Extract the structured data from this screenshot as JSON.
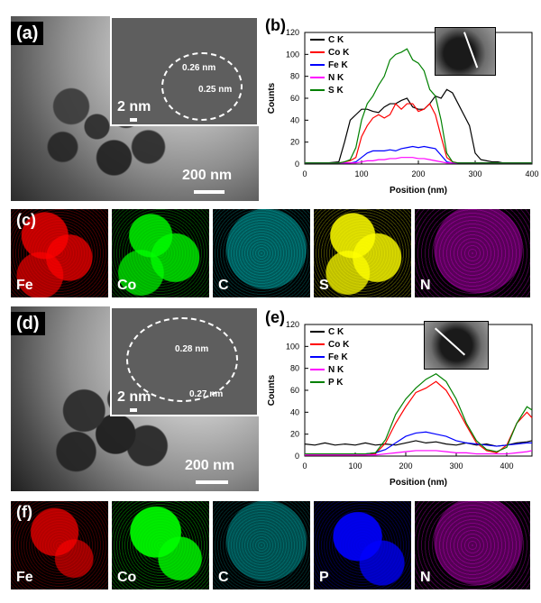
{
  "panels": {
    "a": {
      "label": "(a)",
      "scale": "200 nm",
      "inset_scale": "2 nm",
      "d1": "0.26 nm",
      "d2": "0.25 nm"
    },
    "b": {
      "label": "(b)"
    },
    "c": {
      "label": "(c)",
      "maps": [
        "Fe",
        "Co",
        "C",
        "S",
        "N"
      ]
    },
    "d": {
      "label": "(d)",
      "scale": "200 nm",
      "inset_scale": "2 nm",
      "d1": "0.28 nm",
      "d2": "0.27 nm"
    },
    "e": {
      "label": "(e)"
    },
    "f": {
      "label": "(f)",
      "maps": [
        "Fe",
        "Co",
        "C",
        "P",
        "N"
      ]
    }
  },
  "chart_data": [
    {
      "type": "line",
      "title": "",
      "xlabel": "Position (nm)",
      "ylabel": "Counts",
      "xlim": [
        0,
        400
      ],
      "ylim": [
        0,
        120
      ],
      "xticks": [
        0,
        100,
        200,
        300,
        400
      ],
      "yticks": [
        0,
        20,
        40,
        60,
        80,
        100,
        120
      ],
      "legend_position": "top-left",
      "series": [
        {
          "name": "C K",
          "color": "#000000",
          "x": [
            0,
            20,
            40,
            60,
            70,
            80,
            90,
            100,
            110,
            120,
            130,
            140,
            150,
            160,
            170,
            180,
            190,
            200,
            210,
            220,
            230,
            240,
            250,
            260,
            270,
            280,
            290,
            300,
            310,
            320,
            330,
            340,
            350,
            360,
            370,
            380,
            390,
            400
          ],
          "values": [
            1,
            1,
            1,
            2,
            20,
            40,
            45,
            50,
            50,
            48,
            47,
            52,
            55,
            55,
            58,
            60,
            52,
            50,
            50,
            55,
            62,
            60,
            68,
            65,
            55,
            45,
            35,
            10,
            4,
            3,
            2,
            2,
            1,
            1,
            1,
            1,
            1,
            1
          ]
        },
        {
          "name": "Co K",
          "color": "#ff0000",
          "x": [
            0,
            20,
            40,
            60,
            70,
            80,
            90,
            100,
            110,
            120,
            130,
            140,
            150,
            160,
            170,
            180,
            190,
            200,
            210,
            220,
            230,
            240,
            250,
            260,
            270,
            280,
            290,
            300,
            310,
            320,
            330,
            340,
            350,
            360,
            370,
            380,
            390,
            400
          ],
          "values": [
            1,
            1,
            1,
            1,
            2,
            3,
            6,
            25,
            35,
            42,
            45,
            42,
            45,
            55,
            50,
            55,
            55,
            48,
            50,
            55,
            45,
            25,
            6,
            2,
            1,
            1,
            1,
            1,
            1,
            1,
            1,
            1,
            1,
            1,
            1,
            1,
            1,
            1
          ]
        },
        {
          "name": "Fe K",
          "color": "#0000ff",
          "x": [
            0,
            20,
            40,
            60,
            70,
            80,
            90,
            100,
            110,
            120,
            130,
            140,
            150,
            160,
            170,
            180,
            190,
            200,
            210,
            220,
            230,
            240,
            250,
            260,
            270,
            280,
            290,
            300,
            310,
            320,
            330,
            340,
            350,
            360,
            370,
            380,
            390,
            400
          ],
          "values": [
            1,
            1,
            1,
            1,
            1,
            1,
            2,
            6,
            10,
            12,
            12,
            12,
            13,
            12,
            14,
            15,
            16,
            15,
            16,
            15,
            14,
            8,
            2,
            1,
            1,
            1,
            1,
            1,
            1,
            1,
            1,
            1,
            1,
            1,
            1,
            1,
            1,
            1
          ]
        },
        {
          "name": "N K",
          "color": "#ff00ff",
          "x": [
            0,
            20,
            40,
            60,
            70,
            80,
            90,
            100,
            110,
            120,
            130,
            140,
            150,
            160,
            170,
            180,
            190,
            200,
            210,
            220,
            230,
            240,
            250,
            260,
            270,
            280,
            290,
            300,
            310,
            320,
            330,
            340,
            350,
            360,
            370,
            380,
            390,
            400
          ],
          "values": [
            1,
            1,
            1,
            1,
            1,
            1,
            1,
            2,
            3,
            3,
            4,
            4,
            5,
            5,
            6,
            6,
            6,
            5,
            5,
            4,
            3,
            2,
            1,
            1,
            1,
            1,
            1,
            1,
            1,
            1,
            1,
            1,
            1,
            1,
            1,
            1,
            1,
            1
          ]
        },
        {
          "name": "S K",
          "color": "#008000",
          "x": [
            0,
            20,
            40,
            60,
            70,
            80,
            90,
            100,
            110,
            120,
            130,
            140,
            150,
            160,
            170,
            180,
            190,
            200,
            210,
            220,
            230,
            240,
            250,
            260,
            270,
            280,
            290,
            300,
            310,
            320,
            330,
            340,
            350,
            360,
            370,
            380,
            390,
            400
          ],
          "values": [
            1,
            1,
            1,
            1,
            2,
            4,
            15,
            40,
            55,
            62,
            72,
            80,
            95,
            100,
            102,
            105,
            95,
            92,
            85,
            68,
            62,
            40,
            10,
            2,
            1,
            1,
            1,
            1,
            1,
            1,
            1,
            1,
            1,
            1,
            1,
            1,
            1,
            1
          ]
        }
      ],
      "inset_image": "line-scan-inset"
    },
    {
      "type": "line",
      "title": "",
      "xlabel": "Position (nm)",
      "ylabel": "Counts",
      "xlim": [
        0,
        450
      ],
      "ylim": [
        0,
        120
      ],
      "xticks": [
        0,
        100,
        200,
        300,
        400
      ],
      "yticks": [
        0,
        20,
        40,
        60,
        80,
        100,
        120
      ],
      "legend_position": "top-left",
      "series": [
        {
          "name": "C K",
          "color": "#000000",
          "x": [
            0,
            20,
            40,
            60,
            80,
            100,
            120,
            140,
            160,
            180,
            200,
            220,
            240,
            260,
            280,
            300,
            320,
            340,
            360,
            380,
            400,
            420,
            440,
            450
          ],
          "values": [
            11,
            10,
            12,
            10,
            11,
            10,
            12,
            10,
            11,
            10,
            12,
            14,
            12,
            13,
            11,
            10,
            12,
            10,
            11,
            9,
            10,
            12,
            13,
            14
          ]
        },
        {
          "name": "Co K",
          "color": "#ff0000",
          "x": [
            0,
            20,
            40,
            60,
            80,
            100,
            120,
            140,
            160,
            180,
            200,
            220,
            240,
            260,
            280,
            300,
            320,
            340,
            360,
            380,
            400,
            420,
            440,
            450
          ],
          "values": [
            1,
            1,
            1,
            1,
            1,
            1,
            1,
            2,
            12,
            30,
            45,
            58,
            62,
            68,
            60,
            45,
            28,
            12,
            5,
            3,
            10,
            30,
            40,
            35
          ]
        },
        {
          "name": "Fe K",
          "color": "#0000ff",
          "x": [
            0,
            20,
            40,
            60,
            80,
            100,
            120,
            140,
            160,
            180,
            200,
            220,
            240,
            260,
            280,
            300,
            320,
            340,
            360,
            380,
            400,
            420,
            440,
            450
          ],
          "values": [
            2,
            2,
            2,
            2,
            2,
            2,
            2,
            3,
            6,
            12,
            18,
            21,
            22,
            20,
            18,
            14,
            12,
            11,
            10,
            9,
            10,
            11,
            12,
            12
          ]
        },
        {
          "name": "N K",
          "color": "#ff00ff",
          "x": [
            0,
            20,
            40,
            60,
            80,
            100,
            120,
            140,
            160,
            180,
            200,
            220,
            240,
            260,
            280,
            300,
            320,
            340,
            360,
            380,
            400,
            420,
            440,
            450
          ],
          "values": [
            1,
            1,
            1,
            1,
            1,
            1,
            1,
            1,
            2,
            3,
            4,
            5,
            5,
            5,
            4,
            3,
            3,
            2,
            2,
            2,
            2,
            3,
            4,
            5
          ]
        },
        {
          "name": "P K",
          "color": "#008000",
          "x": [
            0,
            20,
            40,
            60,
            80,
            100,
            120,
            140,
            160,
            180,
            200,
            220,
            240,
            260,
            280,
            300,
            320,
            340,
            360,
            380,
            400,
            420,
            440,
            450
          ],
          "values": [
            2,
            2,
            2,
            2,
            2,
            2,
            2,
            3,
            15,
            38,
            52,
            62,
            70,
            75,
            68,
            52,
            30,
            14,
            6,
            4,
            8,
            30,
            45,
            42
          ]
        }
      ],
      "inset_image": "line-scan-inset"
    }
  ]
}
